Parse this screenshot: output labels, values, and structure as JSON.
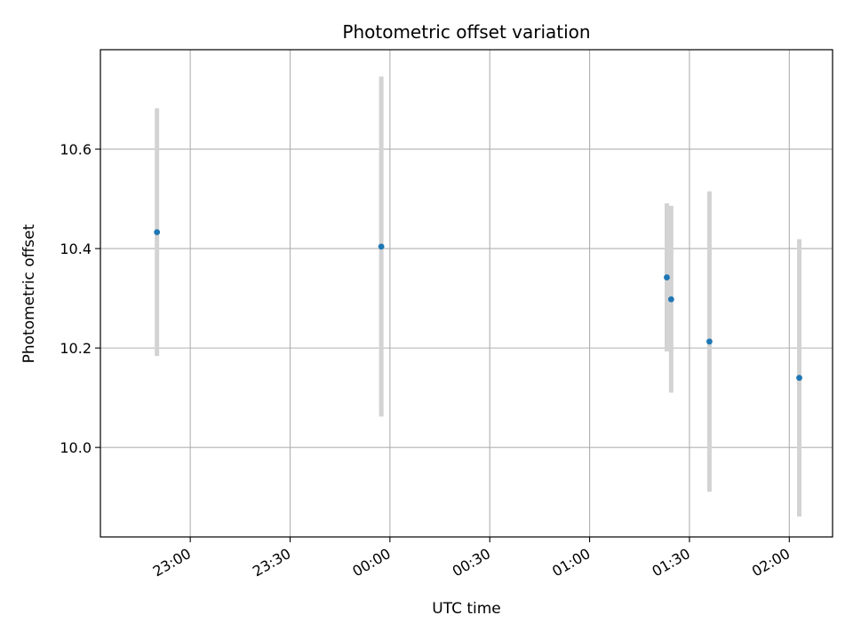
{
  "chart_data": {
    "type": "scatter",
    "title": "Photometric offset variation",
    "xlabel": "UTC time",
    "ylabel": "Photometric offset",
    "x_tick_labels": [
      "23:00",
      "23:30",
      "00:00",
      "00:30",
      "01:00",
      "01:30",
      "02:00"
    ],
    "x_tick_minutes": [
      1380,
      1410,
      1440,
      1470,
      1500,
      1530,
      1560
    ],
    "xlim_minutes": [
      1353,
      1573
    ],
    "y_ticks": [
      10.0,
      10.2,
      10.4,
      10.6
    ],
    "y_tick_labels": [
      "10.0",
      "10.2",
      "10.4",
      "10.6"
    ],
    "ylim": [
      9.82,
      10.8
    ],
    "grid": true,
    "colors": {
      "point": "#1f77b4",
      "errorbar": "#d3d3d3",
      "grid": "#b0b0b0"
    },
    "points": [
      {
        "time": "22:50",
        "x": 1370.0,
        "y": 10.433,
        "yerr": 0.249
      },
      {
        "time": "23:57",
        "x": 1437.4,
        "y": 10.404,
        "yerr": 0.342
      },
      {
        "time": "01:23",
        "x": 1523.2,
        "y": 10.342,
        "yerr": 0.149
      },
      {
        "time": "01:24",
        "x": 1524.5,
        "y": 10.298,
        "yerr": 0.188
      },
      {
        "time": "01:36",
        "x": 1536.0,
        "y": 10.213,
        "yerr": 0.302
      },
      {
        "time": "02:03",
        "x": 1563.0,
        "y": 10.14,
        "yerr": 0.279
      }
    ]
  }
}
